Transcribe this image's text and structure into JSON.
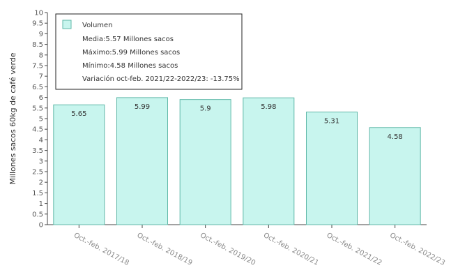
{
  "chart_data": {
    "type": "bar",
    "categories": [
      "Oct.-feb. 2017/18",
      "Oct.-feb. 2018/19",
      "Oct.-feb. 2019/20",
      "Oct.-feb. 2020/21",
      "Oct.-feb. 2021/22",
      "Oct.-feb. 2022/23"
    ],
    "series": [
      {
        "name": "Volumen",
        "values": [
          5.65,
          5.99,
          5.9,
          5.98,
          5.31,
          4.58
        ]
      }
    ],
    "data_labels": [
      "5.65",
      "5.99",
      "5.9",
      "5.98",
      "5.31",
      "4.58"
    ],
    "ylabel": "Millones sacos 60kg de café verde",
    "xlabel": "",
    "ylim": [
      0,
      10
    ],
    "yticks": [
      0,
      0.5,
      1,
      1.5,
      2,
      2.5,
      3,
      3.5,
      4,
      4.5,
      5,
      5.5,
      6,
      6.5,
      7,
      7.5,
      8,
      8.5,
      9,
      9.5,
      10
    ],
    "ytick_labels": [
      "0",
      "0.5",
      "1",
      "1.5",
      "2",
      "2.5",
      "3",
      "3.5",
      "4",
      "4.5",
      "5",
      "5.5",
      "6",
      "6.5",
      "7",
      "7.5",
      "8",
      "8.5",
      "9",
      "9.5",
      "10"
    ],
    "grid": false,
    "legend_position": "top-left",
    "legend_lines": [
      "Media:5.57 Millones sacos",
      "Máximo:5.99 Millones sacos",
      "Mínimo:4.58 Millones sacos",
      "Variación oct-feb. 2021/22-2022/23: -13.75%"
    ],
    "colors": {
      "bar_fill": "#c8f5ee",
      "bar_stroke": "#5fb8a8",
      "axis": "#444444"
    }
  }
}
